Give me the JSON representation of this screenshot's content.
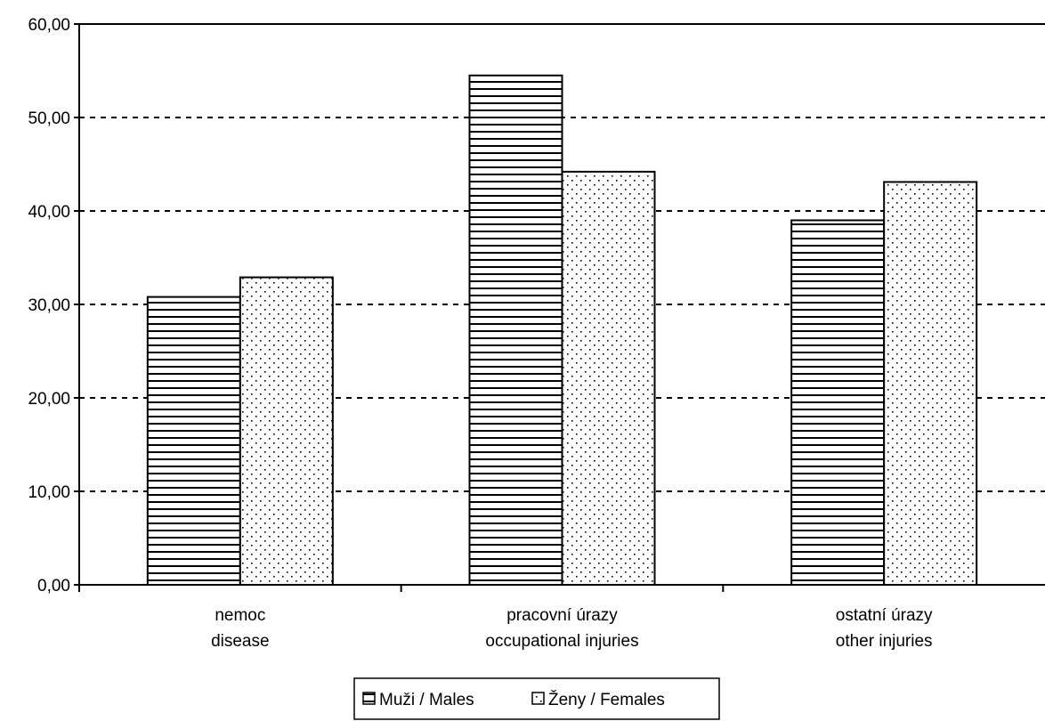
{
  "chart_data": {
    "type": "bar",
    "categories": [
      [
        "nemoc",
        "disease"
      ],
      [
        "pracovní úrazy",
        "occupational injuries"
      ],
      [
        "ostatní úrazy",
        "other injuries"
      ]
    ],
    "series": [
      {
        "name": "Muži / Males",
        "pattern": "horizontal-lines",
        "values": [
          30.8,
          54.5,
          39.0
        ]
      },
      {
        "name": "Ženy / Females",
        "pattern": "dots",
        "values": [
          32.9,
          44.2,
          43.1
        ]
      }
    ],
    "y_ticks": [
      "0,00",
      "10,00",
      "20,00",
      "30,00",
      "40,00",
      "50,00",
      "60,00"
    ],
    "ylim": [
      0,
      60
    ],
    "grid": "dashed horizontal",
    "legend_position": "bottom-center",
    "colors": {
      "bar_fill": "#ffffff",
      "pattern": "#000000",
      "axis": "#000000"
    }
  }
}
